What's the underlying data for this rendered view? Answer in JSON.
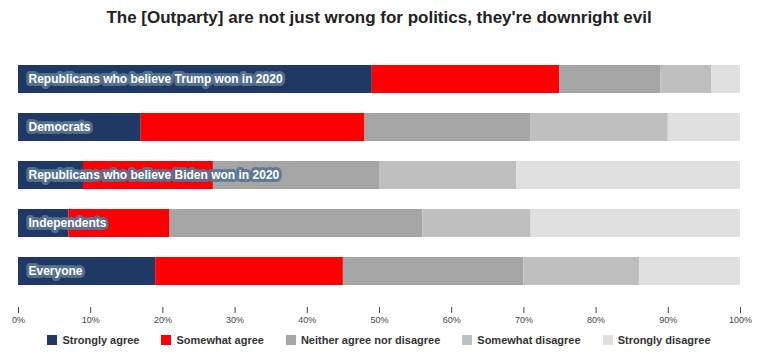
{
  "chart_data": {
    "type": "bar",
    "title": "The [Outparty] are not just wrong for politics, they're downright evil",
    "orientation": "horizontal",
    "stacked": true,
    "categories": [
      "Republicans who believe Trump won in 2020",
      "Democrats",
      "Republicans who believe Biden won in 2020",
      "Independents",
      "Everyone"
    ],
    "series": [
      {
        "name": "Strongly agree",
        "color": "#1f3864",
        "values": [
          49,
          17,
          9,
          7,
          19
        ]
      },
      {
        "name": "Somewhat agree",
        "color": "#ff0000",
        "values": [
          26,
          31,
          18,
          14,
          26
        ]
      },
      {
        "name": "Neither agree nor disagree",
        "color": "#a5a5a5",
        "values": [
          14,
          23,
          23,
          35,
          25
        ]
      },
      {
        "name": "Somewhat disagree",
        "color": "#bfbfbf",
        "values": [
          7,
          19,
          19,
          15,
          16
        ]
      },
      {
        "name": "Strongly disagree",
        "color": "#e0e0e0",
        "values": [
          4,
          10,
          31,
          29,
          14
        ]
      }
    ],
    "xlim": [
      0,
      100
    ],
    "xticks": [
      {
        "value": 0,
        "label": "0%"
      },
      {
        "value": 10,
        "label": "10%"
      },
      {
        "value": 20,
        "label": "20%"
      },
      {
        "value": 30,
        "label": "30%"
      },
      {
        "value": 40,
        "label": "40%"
      },
      {
        "value": 50,
        "label": "50%"
      },
      {
        "value": 60,
        "label": "60%"
      },
      {
        "value": 70,
        "label": "70%"
      },
      {
        "value": 80,
        "label": "80%"
      },
      {
        "value": 90,
        "label": "90%"
      },
      {
        "value": 100,
        "label": "100%"
      }
    ],
    "grid": false,
    "legend": "bottom",
    "tick_labels": "x"
  }
}
